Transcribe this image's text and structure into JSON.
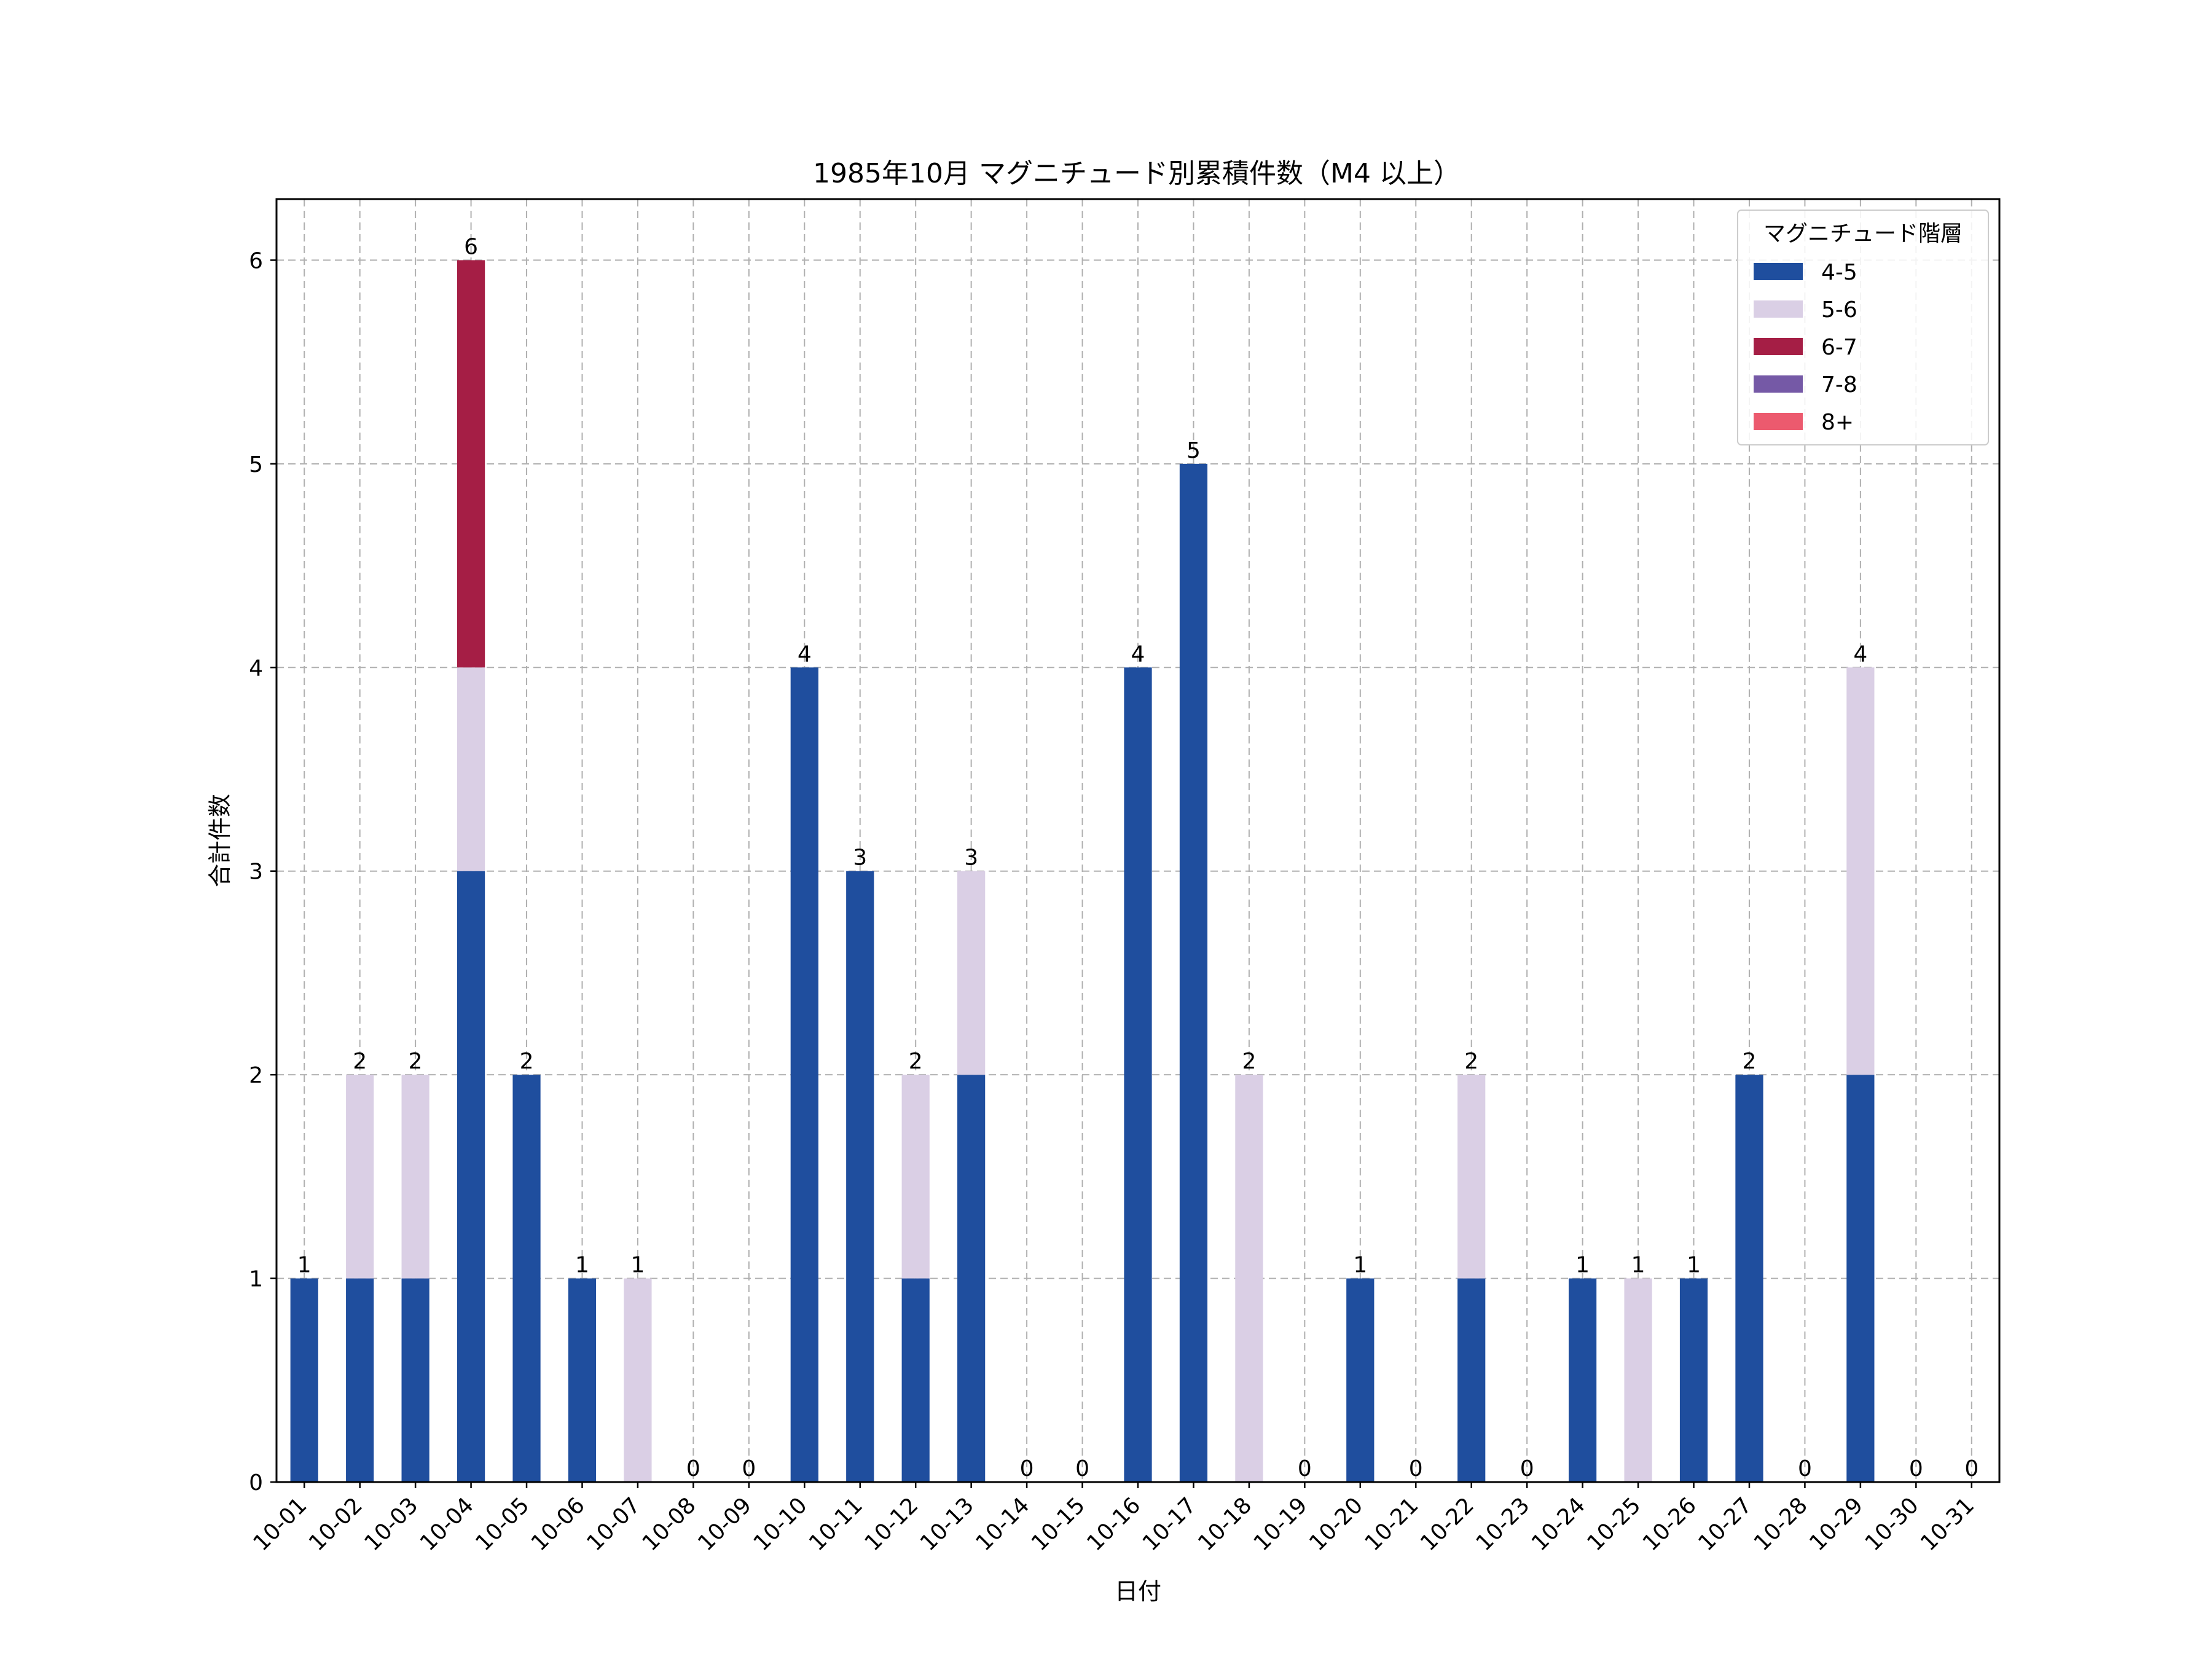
{
  "chart_data": {
    "type": "bar",
    "stacked": true,
    "title": "1985年10月 マグニチュード別累積件数（M4 以上）",
    "xlabel": "日付",
    "ylabel": "合計件数",
    "ylim": [
      0,
      6.3
    ],
    "yticks": [
      0,
      1,
      2,
      3,
      4,
      5,
      6
    ],
    "grid": true,
    "legend": {
      "title": "マグニチュード階層",
      "placement": "top-right"
    },
    "categories": [
      "10-01",
      "10-02",
      "10-03",
      "10-04",
      "10-05",
      "10-06",
      "10-07",
      "10-08",
      "10-09",
      "10-10",
      "10-11",
      "10-12",
      "10-13",
      "10-14",
      "10-15",
      "10-16",
      "10-17",
      "10-18",
      "10-19",
      "10-20",
      "10-21",
      "10-22",
      "10-23",
      "10-24",
      "10-25",
      "10-26",
      "10-27",
      "10-28",
      "10-29",
      "10-30",
      "10-31"
    ],
    "series": [
      {
        "name": "4-5",
        "color": "#1f4e9e",
        "values": [
          1,
          1,
          1,
          3,
          2,
          1,
          0,
          0,
          0,
          4,
          3,
          1,
          2,
          0,
          0,
          4,
          5,
          0,
          0,
          1,
          0,
          1,
          0,
          1,
          0,
          1,
          2,
          0,
          2,
          0,
          0
        ]
      },
      {
        "name": "5-6",
        "color": "#dacfe5",
        "values": [
          0,
          1,
          1,
          1,
          0,
          0,
          1,
          0,
          0,
          0,
          0,
          1,
          1,
          0,
          0,
          0,
          0,
          2,
          0,
          0,
          0,
          1,
          0,
          0,
          1,
          0,
          0,
          0,
          2,
          0,
          0
        ]
      },
      {
        "name": "6-7",
        "color": "#a51e45",
        "values": [
          0,
          0,
          0,
          2,
          0,
          0,
          0,
          0,
          0,
          0,
          0,
          0,
          0,
          0,
          0,
          0,
          0,
          0,
          0,
          0,
          0,
          0,
          0,
          0,
          0,
          0,
          0,
          0,
          0,
          0,
          0
        ]
      },
      {
        "name": "7-8",
        "color": "#7559a6",
        "values": [
          0,
          0,
          0,
          0,
          0,
          0,
          0,
          0,
          0,
          0,
          0,
          0,
          0,
          0,
          0,
          0,
          0,
          0,
          0,
          0,
          0,
          0,
          0,
          0,
          0,
          0,
          0,
          0,
          0,
          0,
          0
        ]
      },
      {
        "name": "8+",
        "color": "#ec5a6e",
        "values": [
          0,
          0,
          0,
          0,
          0,
          0,
          0,
          0,
          0,
          0,
          0,
          0,
          0,
          0,
          0,
          0,
          0,
          0,
          0,
          0,
          0,
          0,
          0,
          0,
          0,
          0,
          0,
          0,
          0,
          0,
          0
        ]
      }
    ],
    "totals": [
      1,
      2,
      2,
      6,
      2,
      1,
      1,
      0,
      0,
      4,
      3,
      2,
      3,
      0,
      0,
      4,
      5,
      2,
      0,
      1,
      0,
      2,
      0,
      1,
      1,
      1,
      2,
      0,
      4,
      0,
      0
    ]
  }
}
